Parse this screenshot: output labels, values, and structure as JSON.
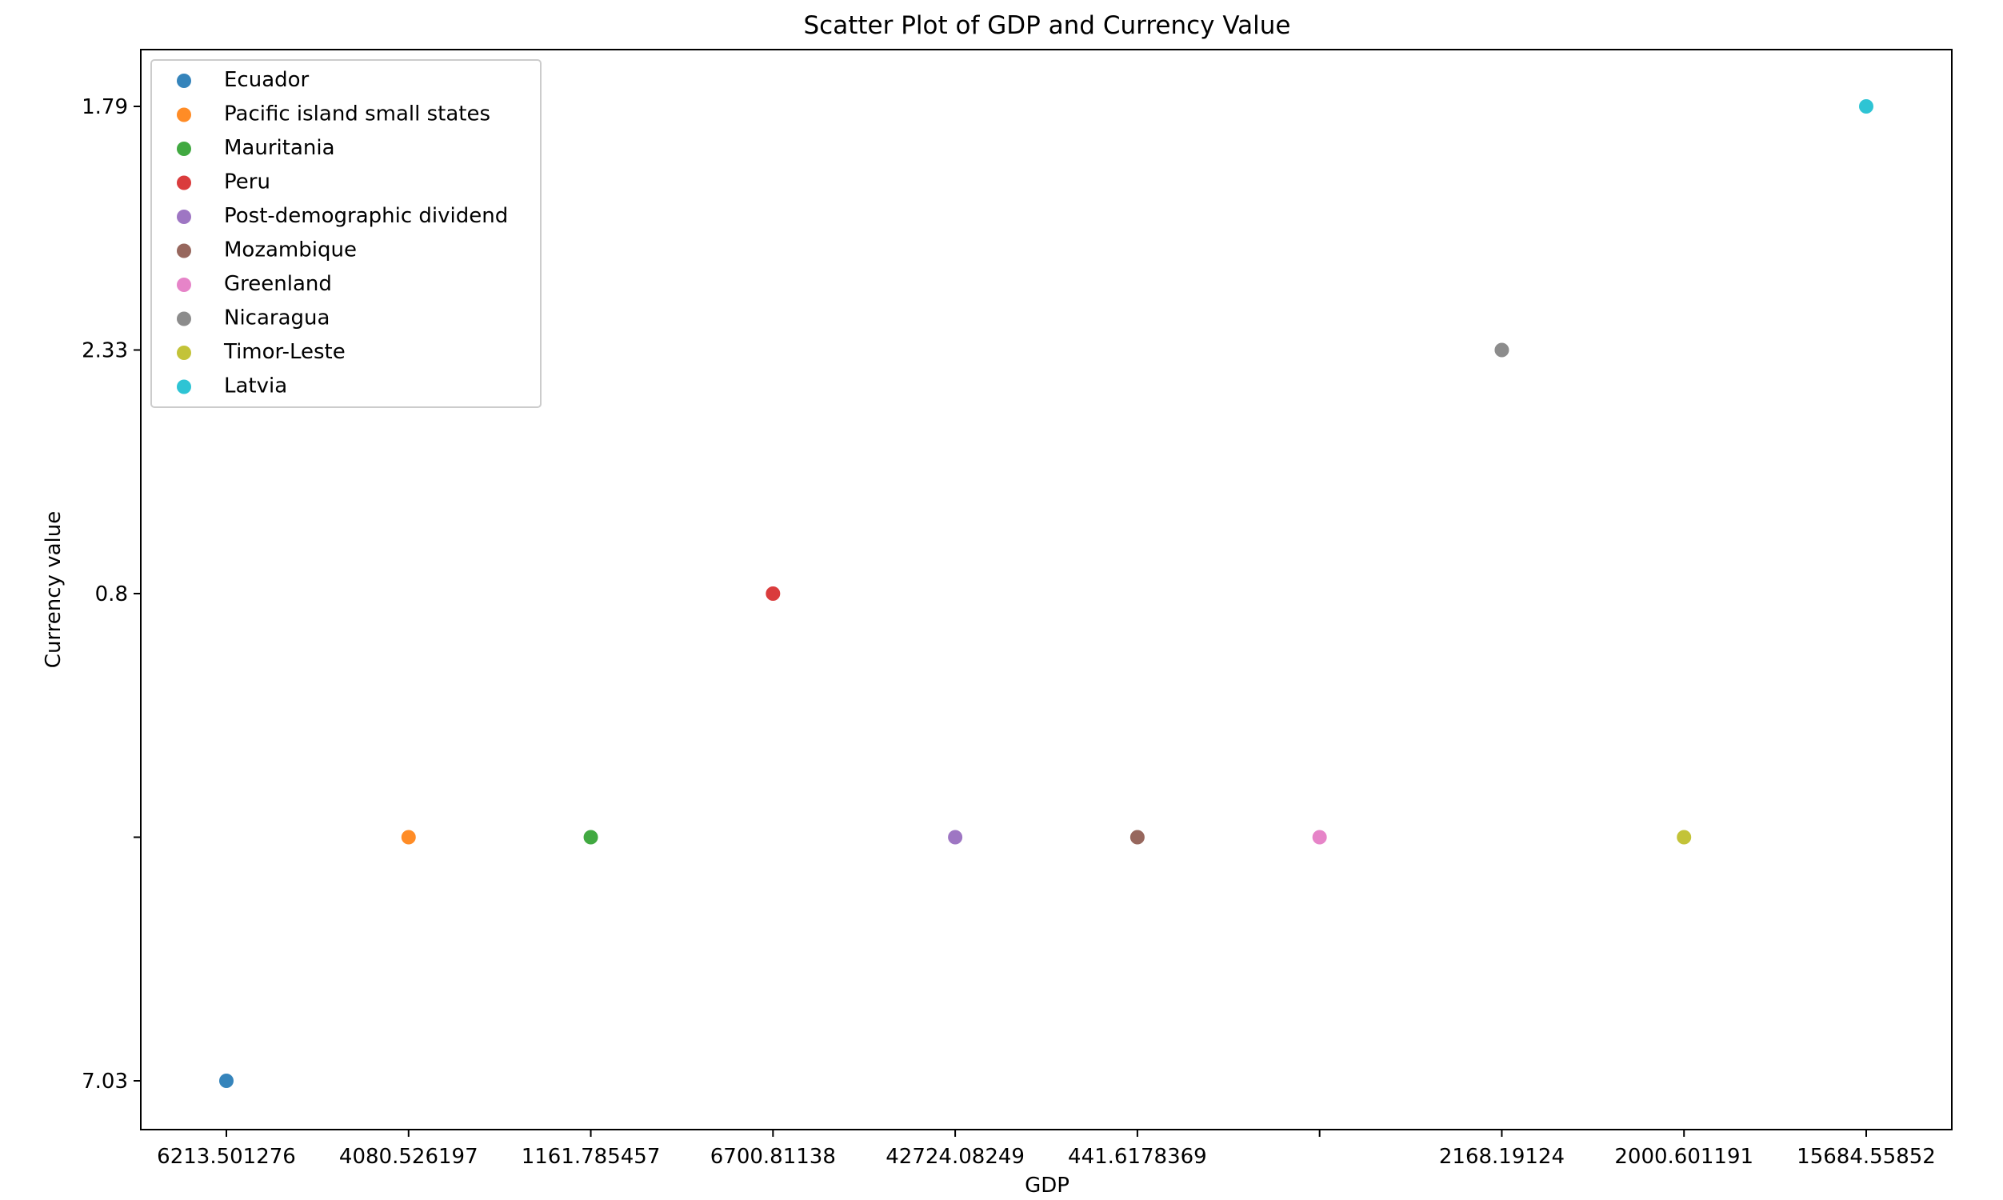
{
  "chart_data": {
    "type": "scatter",
    "title": "Scatter Plot of GDP and Currency Value",
    "xlabel": "GDP",
    "ylabel": "Currency value",
    "x_axis": {
      "scale": "categorical",
      "tick_labels": [
        "6213.501276",
        "4080.526197",
        "1161.785457",
        "6700.81138",
        "42724.08249",
        "441.6178369",
        "",
        "2168.19124",
        "2000.601191",
        "15684.55852"
      ]
    },
    "y_axis": {
      "scale": "categorical",
      "tick_labels": [
        "7.03",
        "",
        "0.8",
        "2.33",
        "1.79"
      ]
    },
    "grid": false,
    "legend_position": "upper-left",
    "series": [
      {
        "name": "Ecuador",
        "x": "6213.501276",
        "y": "7.03",
        "color": "#1f77b4"
      },
      {
        "name": "Pacific island small states",
        "x": "4080.526197",
        "y": "",
        "color": "#ff7f0e"
      },
      {
        "name": "Mauritania",
        "x": "1161.785457",
        "y": "",
        "color": "#2ca02c"
      },
      {
        "name": "Peru",
        "x": "6700.81138",
        "y": "0.8",
        "color": "#d62728"
      },
      {
        "name": "Post-demographic dividend",
        "x": "42724.08249",
        "y": "",
        "color": "#9467bd"
      },
      {
        "name": "Mozambique",
        "x": "441.6178369",
        "y": "",
        "color": "#8c564b"
      },
      {
        "name": "Greenland",
        "x": "",
        "y": "",
        "color": "#e377c2"
      },
      {
        "name": "Nicaragua",
        "x": "2168.19124",
        "y": "2.33",
        "color": "#7f7f7f"
      },
      {
        "name": "Timor-Leste",
        "x": "2000.601191",
        "y": "",
        "color": "#bcbd22"
      },
      {
        "name": "Latvia",
        "x": "15684.55852",
        "y": "1.79",
        "color": "#17becf"
      }
    ]
  }
}
